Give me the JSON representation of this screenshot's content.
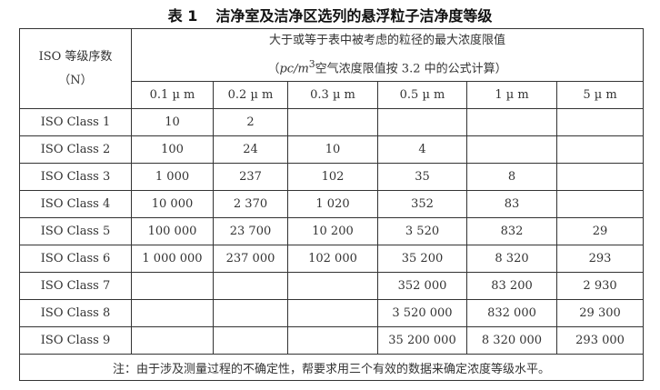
{
  "title": {
    "number": "表 1",
    "text": "洁净室及洁净区选列的悬浮粒子洁净度等级"
  },
  "header": {
    "row_label_line1": "ISO 等级序数",
    "row_label_line2": "（N）",
    "group_line1": "大于或等于表中被考虑的粒径的最大浓度限值",
    "group_line2_prefix": "（",
    "group_line2_unit": "pc/m",
    "group_line2_sup": "3",
    "group_line2_rest": "空气浓度限值按 3.2 中的公式计算）",
    "sizes": [
      "0.1 µ m",
      "0.2 µ m",
      "0.3 µ m",
      "0.5 µ m",
      "1 µ m",
      "5 µ m"
    ]
  },
  "rows": [
    {
      "label": "ISO Class 1",
      "values": [
        "10",
        "2",
        "",
        "",
        "",
        ""
      ]
    },
    {
      "label": "ISO Class 2",
      "values": [
        "100",
        "24",
        "10",
        "4",
        "",
        ""
      ]
    },
    {
      "label": "ISO Class 3",
      "values": [
        "1 000",
        "237",
        "102",
        "35",
        "8",
        ""
      ]
    },
    {
      "label": "ISO Class 4",
      "values": [
        "10 000",
        "2 370",
        "1 020",
        "352",
        "83",
        ""
      ]
    },
    {
      "label": "ISO Class 5",
      "values": [
        "100 000",
        "23 700",
        "10 200",
        "3 520",
        "832",
        "29"
      ]
    },
    {
      "label": "ISO Class 6",
      "values": [
        "1 000 000",
        "237 000",
        "102 000",
        "35 200",
        "8 320",
        "293"
      ]
    },
    {
      "label": "ISO Class 7",
      "values": [
        "",
        "",
        "",
        "352 000",
        "83 200",
        "2 930"
      ]
    },
    {
      "label": "ISO Class 8",
      "values": [
        "",
        "",
        "",
        "3 520 000",
        "832 000",
        "29 300"
      ]
    },
    {
      "label": "ISO Class 9",
      "values": [
        "",
        "",
        "",
        "35 200 000",
        "8 320 000",
        "293 000"
      ]
    }
  ],
  "note": "注：由于涉及测量过程的不确定性，帮要求用三个有效的数据来确定浓度等级水平。"
}
